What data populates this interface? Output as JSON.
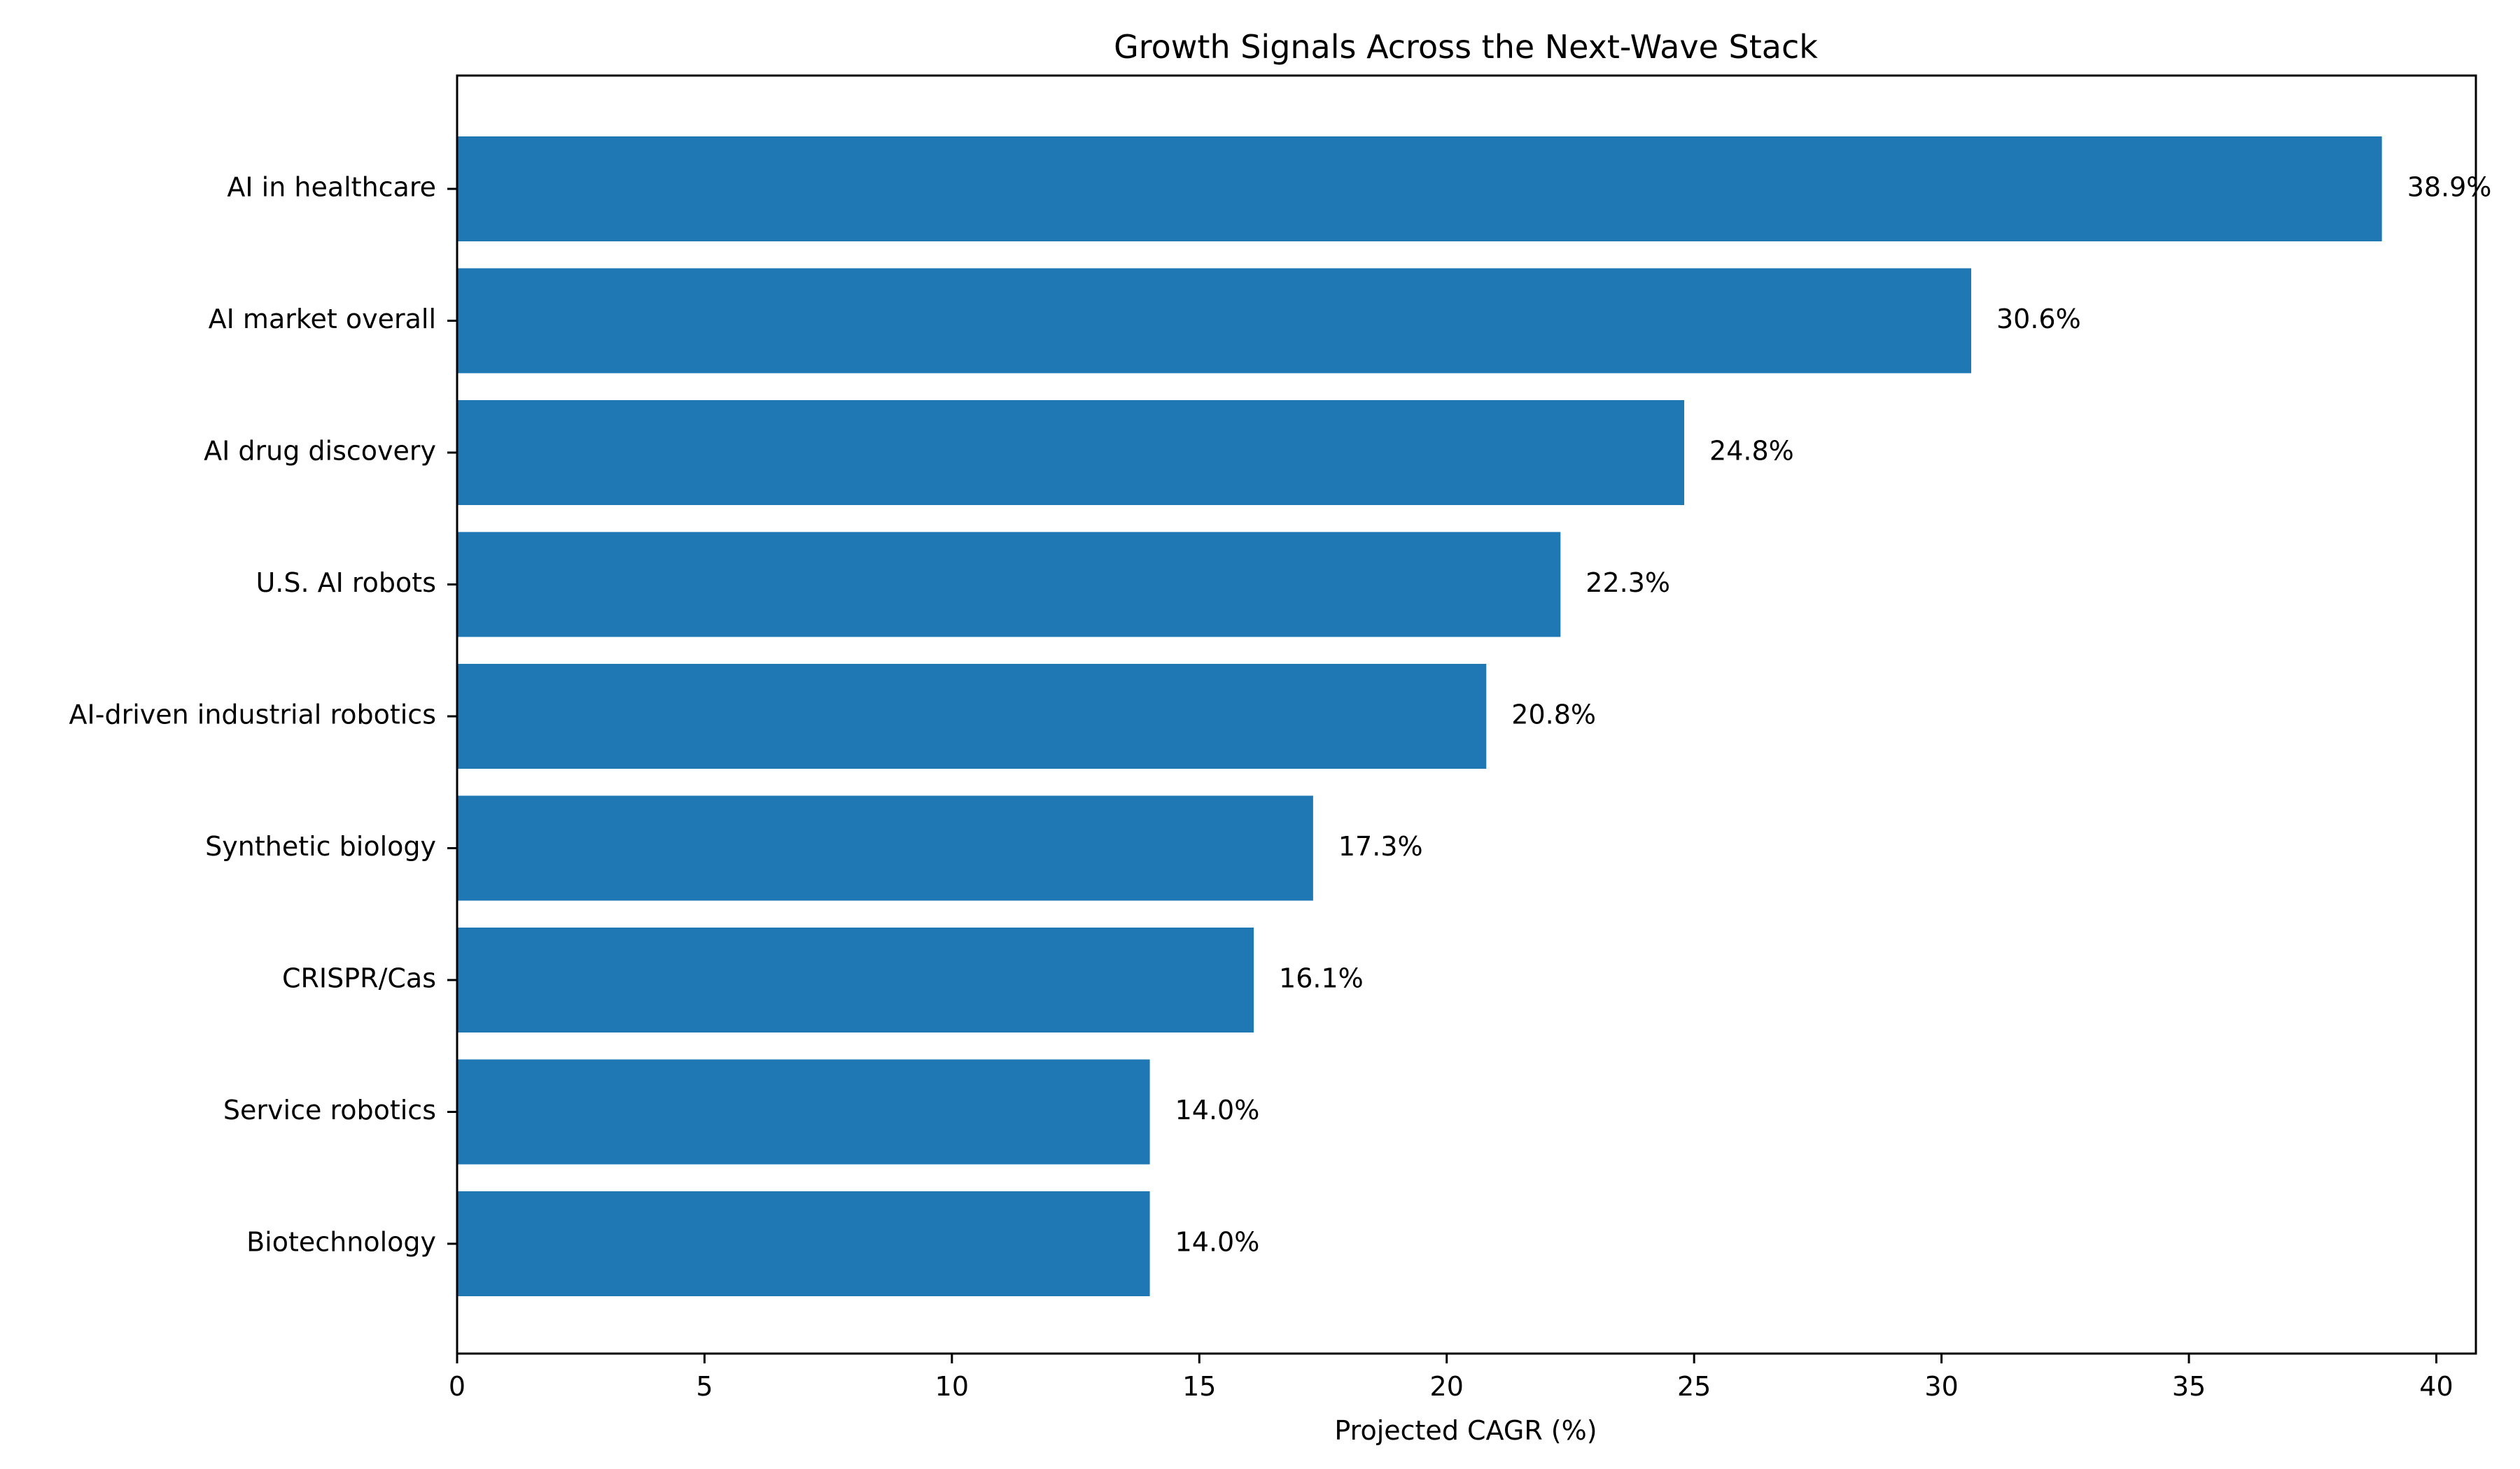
{
  "chart_data": {
    "type": "bar",
    "orientation": "horizontal",
    "title": "Growth Signals Across the Next-Wave Stack",
    "xlabel": "Projected CAGR (%)",
    "ylabel": "",
    "xlim": [
      0,
      40.8
    ],
    "x_ticks": [
      0,
      5,
      10,
      15,
      20,
      25,
      30,
      35,
      40
    ],
    "x_tick_labels": [
      "0",
      "5",
      "10",
      "15",
      "20",
      "25",
      "30",
      "35",
      "40"
    ],
    "categories": [
      "AI in healthcare",
      "AI market overall",
      "AI drug discovery",
      "U.S. AI robots",
      "AI-driven industrial robotics",
      "Synthetic biology",
      "CRISPR/Cas",
      "Service robotics",
      "Biotechnology"
    ],
    "values": [
      38.9,
      30.6,
      24.8,
      22.3,
      20.8,
      17.3,
      16.1,
      14.0,
      14.0
    ],
    "data_labels": [
      "38.9%",
      "30.6%",
      "24.8%",
      "22.3%",
      "20.8%",
      "17.3%",
      "16.1%",
      "14.0%",
      "14.0%"
    ],
    "bar_color": "#1f77b4",
    "grid": false,
    "legend": "none"
  }
}
